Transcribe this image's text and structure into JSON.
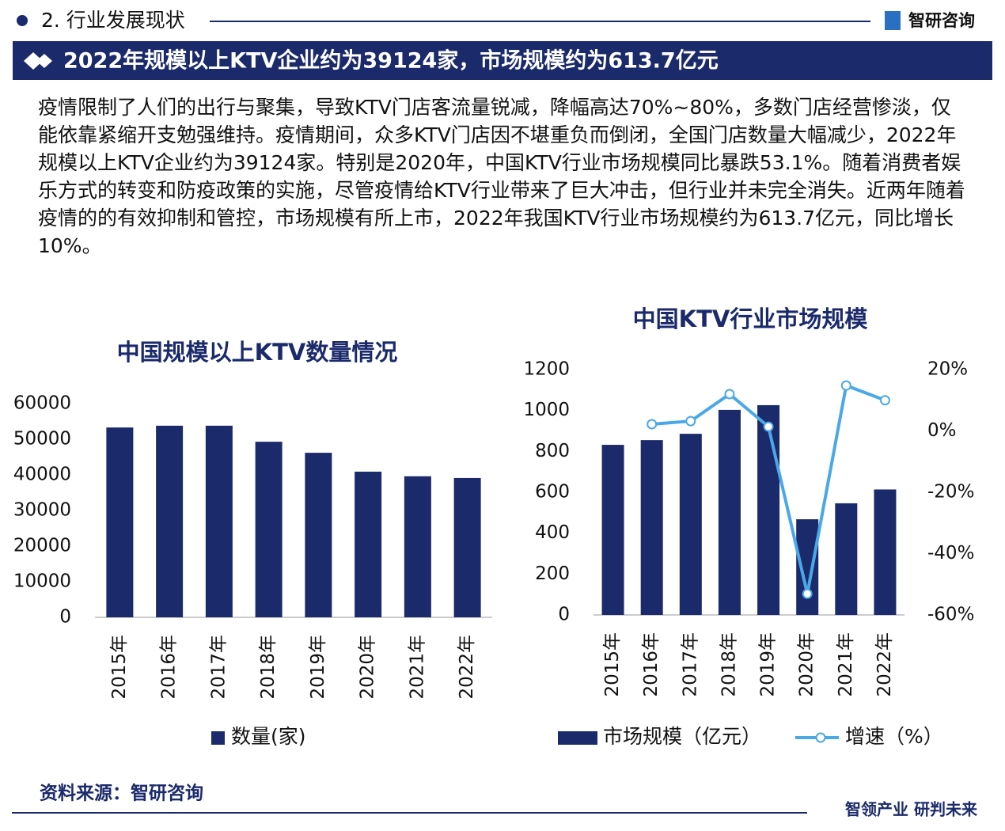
{
  "header": {
    "section": "2. 行业发展现状",
    "logo": "智研咨询"
  },
  "banner": "2022年规模以上KTV企业约为39124家，市场规模约为613.7亿元",
  "paragraph": "疫情限制了人们的出行与聚集，导致KTV门店客流量锐减，降幅高达70%~80%，多数门店经营惨淡，仅能依靠紧缩开支勉强维持。疫情期间，众多KTV门店因不堪重负而倒闭，全国门店数量大幅减少，2022年规模以上KTV企业约为39124家。特别是2020年，中国KTV行业市场规模同比暴跌53.1%。随着消费者娱乐方式的转变和防疫政策的实施，尽管疫情给KTV行业带来了巨大冲击，但行业并未完全消失。近两年随着疫情的的有效抑制和管控，市场规模有所上市，2022年我国KTV行业市场规模约为613.7亿元，同比增长10%。",
  "chart_data": [
    {
      "type": "bar",
      "title": "中国规模以上KTV数量情况",
      "categories": [
        "2015年",
        "2016年",
        "2017年",
        "2018年",
        "2019年",
        "2020年",
        "2021年",
        "2022年"
      ],
      "series": [
        {
          "name": "数量(家)",
          "color": "#1b2a6b",
          "values": [
            53300,
            53800,
            53800,
            49300,
            46200,
            40900,
            39600,
            39124
          ]
        }
      ],
      "ylim": [
        0,
        60000
      ],
      "yticks": [
        0,
        10000,
        20000,
        30000,
        40000,
        50000,
        60000
      ],
      "grid": false
    },
    {
      "type": "combo",
      "title": "中国KTV行业市场规模",
      "categories": [
        "2015年",
        "2016年",
        "2017年",
        "2018年",
        "2019年",
        "2020年",
        "2021年",
        "2022年"
      ],
      "series": [
        {
          "name": "市场规模（亿元）",
          "type": "bar",
          "color": "#1b2a6b",
          "values": [
            832,
            855,
            886,
            1003,
            1026,
            468,
            546,
            613.7
          ]
        },
        {
          "name": "增速（%）",
          "type": "line",
          "axis": "y2",
          "color": "#4aa8e8",
          "values": [
            null,
            2.2,
            3.2,
            12,
            1.4,
            -53.1,
            14.8,
            10
          ]
        }
      ],
      "ylim": [
        0,
        1200
      ],
      "yticks": [
        0,
        200,
        400,
        600,
        800,
        1000,
        1200
      ],
      "y2lim": [
        -60,
        20
      ],
      "y2ticks": [
        {
          "value": -60,
          "label": "-60%"
        },
        {
          "value": -40,
          "label": "-40%"
        },
        {
          "value": -20,
          "label": "-20%"
        },
        {
          "value": 0,
          "label": "0%"
        },
        {
          "value": 20,
          "label": "20%"
        }
      ],
      "grid": false
    }
  ],
  "footer": {
    "source": "资料来源：智研咨询",
    "slogan": "智领产业 研判未来"
  }
}
